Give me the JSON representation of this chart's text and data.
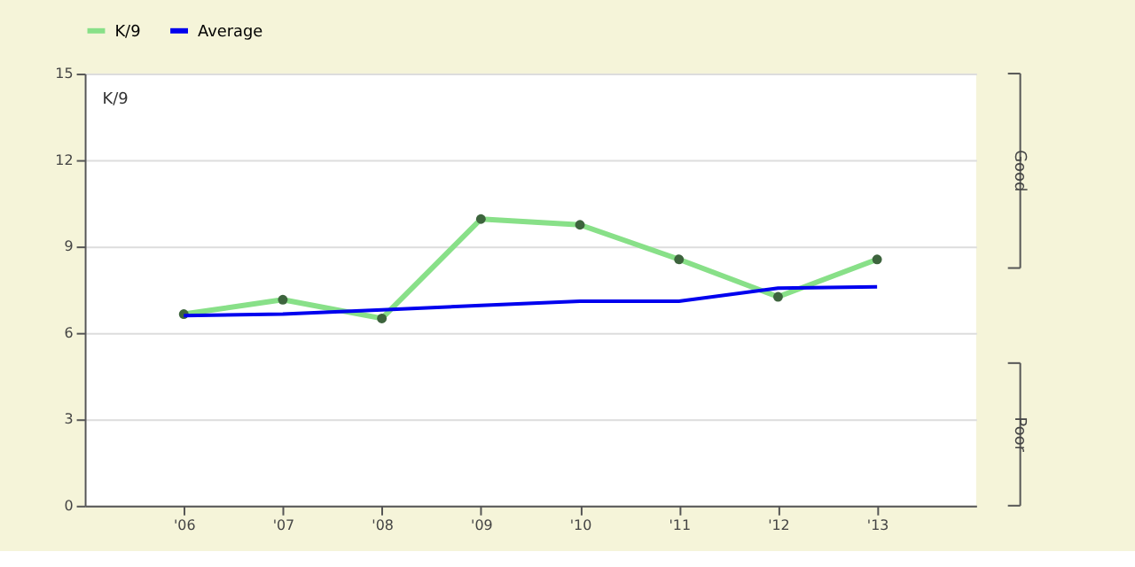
{
  "chart_data": {
    "type": "line",
    "categories": [
      "'06",
      "'07",
      "'08",
      "'09",
      "'10",
      "'11",
      "'12",
      "'13"
    ],
    "series": [
      {
        "name": "K/9",
        "color": "#88e088",
        "marker": "circle",
        "values": [
          6.65,
          7.15,
          6.5,
          9.95,
          9.75,
          8.55,
          7.25,
          8.55
        ]
      },
      {
        "name": "Average",
        "color": "#0000ee",
        "marker": "none",
        "values": [
          6.6,
          6.65,
          6.8,
          6.95,
          7.1,
          7.1,
          7.55,
          7.6
        ]
      }
    ],
    "ylim": [
      0,
      15
    ],
    "yticks": [
      0,
      3,
      6,
      9,
      12,
      15
    ],
    "grid": "y",
    "legend": "top",
    "annotations": [
      "K/9",
      "Good",
      "Poor"
    ]
  }
}
